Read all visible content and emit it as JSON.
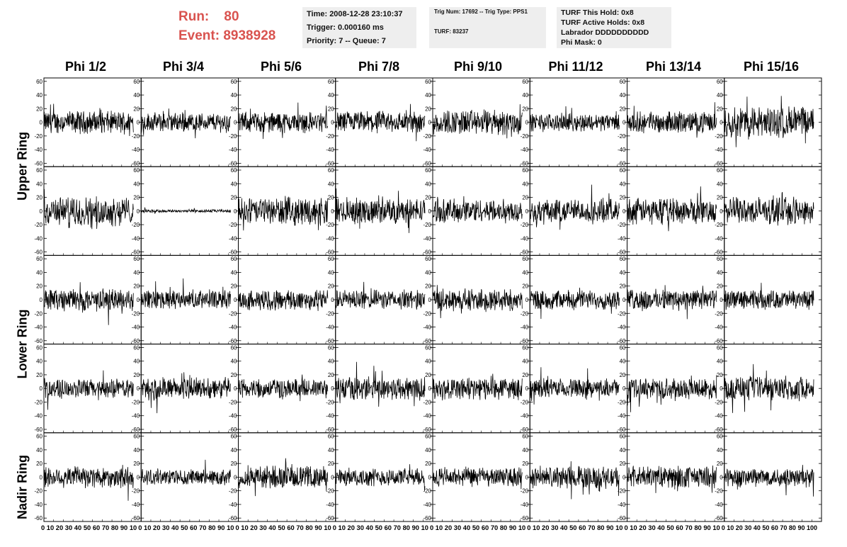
{
  "header": {
    "run_label": "Run:",
    "run_value": "80",
    "event_label": "Event:",
    "event_value": "8938928"
  },
  "info_time": {
    "time": "Time: 2008-12-28 23:10:37",
    "trigger": "Trigger: 0.000160 ms",
    "priority": "Priority: 7 -- Queue: 7"
  },
  "info_trig": {
    "trig": "Trig Num: 17692 -- Trig Type: PPS1",
    "turf": "TURF: 83237"
  },
  "info_turf": {
    "hold": "TURF This Hold: 0x8",
    "active": "TURF Active Holds: 0x8",
    "labrador": "Labrador DDDDDDDDDD",
    "phimask": "Phi Mask: 0"
  },
  "phi_headers": [
    "Phi 1/2",
    "Phi 3/4",
    "Phi 5/6",
    "Phi 7/8",
    "Phi 9/10",
    "Phi 11/12",
    "Phi 13/14",
    "Phi 15/16"
  ],
  "ring_labels": {
    "upper": "Upper Ring",
    "lower": "Lower Ring",
    "nadir": "Nadir Ring"
  },
  "chart_data": {
    "type": "line",
    "title": "",
    "ylim": [
      -65,
      65
    ],
    "xlim": [
      0,
      100
    ],
    "y_ticks": [
      -60,
      -40,
      -20,
      0,
      20,
      40,
      60
    ],
    "x_ticks": [
      0,
      10,
      20,
      30,
      40,
      50,
      60,
      70,
      80,
      90,
      100
    ],
    "x_tick_text": [
      "0 10 20 30 40 50 60 70 80 90 10",
      "0 10 20 30 40 50 60 70 80 90 10",
      "0 10 20 30 40 50 60 70 80 90 10",
      "0 10 20 30 40 50 60 70 80 90 10",
      "0 10 20 30 40 50 60 70 80 90 10",
      "0 10 20 30 40 50 60 70 80 90 10",
      "0 10 20 30 40 50 60 70 80 90 10",
      "0 10 20 30 40 50 60 70 80 90 100"
    ],
    "grid": false,
    "panel_amplitude": [
      [
        14,
        12,
        13,
        14,
        16,
        11,
        13,
        20
      ],
      [
        18,
        2,
        17,
        16,
        15,
        15,
        16,
        17
      ],
      [
        14,
        12,
        13,
        12,
        14,
        12,
        13,
        12
      ],
      [
        12,
        14,
        12,
        15,
        14,
        12,
        13,
        15
      ],
      [
        14,
        10,
        14,
        11,
        12,
        14,
        14,
        12
      ]
    ],
    "samples_per_panel": 260
  }
}
